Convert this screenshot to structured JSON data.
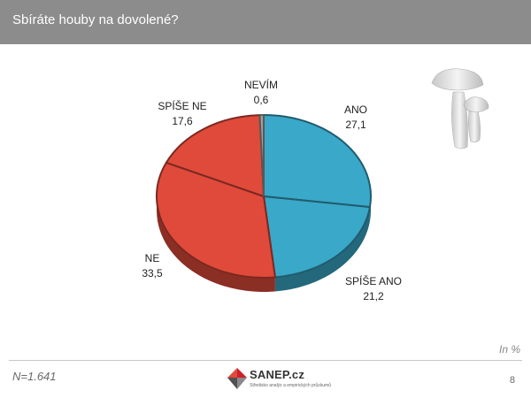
{
  "header": {
    "title": "Sbíráte houby na dovolené?"
  },
  "chart_data": {
    "type": "pie",
    "title": "",
    "unit_label": "In %",
    "slices": [
      {
        "label": "ANO",
        "value": "27,1",
        "number": 27.1,
        "color": "#3aa8c8"
      },
      {
        "label": "SPÍŠE ANO",
        "value": "21,2",
        "number": 21.2,
        "color": "#3aa8c8"
      },
      {
        "label": "NE",
        "value": "33,5",
        "number": 33.5,
        "color": "#e04a3a"
      },
      {
        "label": "SPÍŠE NE",
        "value": "17,6",
        "number": 17.6,
        "color": "#e04a3a"
      },
      {
        "label": "NEVÍM",
        "value": "0,6",
        "number": 0.6,
        "color": "#a0a0a0"
      }
    ]
  },
  "footer": {
    "sample_size": "N=1.641",
    "page_number": "8",
    "logo_name": "SANEP.cz",
    "logo_tagline": "Středisko analýz a empirických průzkumů"
  }
}
